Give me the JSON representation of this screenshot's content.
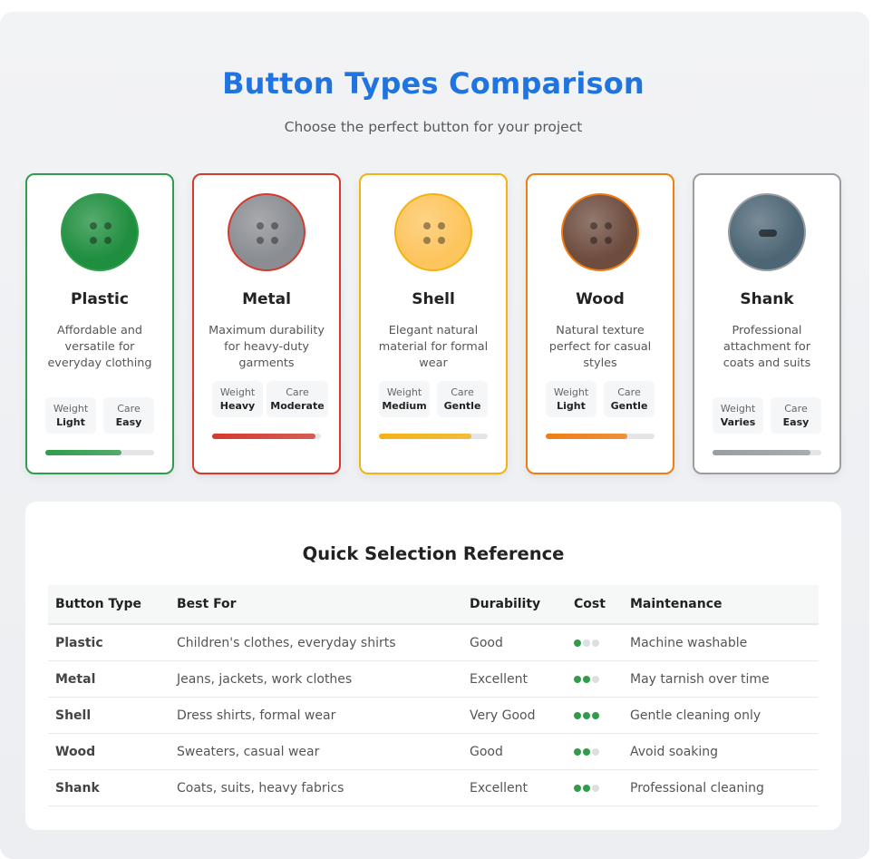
{
  "header": {
    "title": "Button Types Comparison",
    "subtitle": "Choose the perfect button for your project"
  },
  "cards": [
    {
      "name": "Plastic",
      "description": "Affordable and versatile for everyday clothing",
      "weight_label": "Weight",
      "weight": "Light",
      "care_label": "Care",
      "care": "Easy",
      "rating_fill": 0.7,
      "style": "four-hole",
      "accent": "#2f9d4b",
      "button_color": "#1f8e3e"
    },
    {
      "name": "Metal",
      "description": "Maximum durability for heavy-duty garments",
      "weight_label": "Weight",
      "weight": "Heavy",
      "care_label": "Care",
      "care": "Moderate",
      "rating_fill": 0.95,
      "style": "four-hole",
      "accent": "#d43a2e",
      "button_color": "#8a8d92"
    },
    {
      "name": "Shell",
      "description": "Elegant natural material for formal wear",
      "weight_label": "Weight",
      "weight": "Medium",
      "care_label": "Care",
      "care": "Gentle",
      "rating_fill": 0.85,
      "style": "four-hole",
      "accent": "#f2b313",
      "button_color": "#fdc55e"
    },
    {
      "name": "Wood",
      "description": "Natural texture perfect for casual styles",
      "weight_label": "Weight",
      "weight": "Light",
      "care_label": "Care",
      "care": "Gentle",
      "rating_fill": 0.75,
      "style": "four-hole",
      "accent": "#f07d13",
      "button_color": "#6e4c3e"
    },
    {
      "name": "Shank",
      "description": "Professional attachment for coats and suits",
      "weight_label": "Weight",
      "weight": "Varies",
      "care_label": "Care",
      "care": "Easy",
      "rating_fill": 0.9,
      "style": "shank",
      "accent": "#9a9da2",
      "button_color": "#4d6675"
    }
  ],
  "reference": {
    "title": "Quick Selection Reference",
    "columns": [
      "Button Type",
      "Best For",
      "Durability",
      "Cost",
      "Maintenance"
    ],
    "rows": [
      {
        "type": "Plastic",
        "best_for": "Children's clothes, everyday shirts",
        "durability": "Good",
        "cost": 1,
        "maintenance": "Machine washable"
      },
      {
        "type": "Metal",
        "best_for": "Jeans, jackets, work clothes",
        "durability": "Excellent",
        "cost": 2,
        "maintenance": "May tarnish over time"
      },
      {
        "type": "Shell",
        "best_for": "Dress shirts, formal wear",
        "durability": "Very Good",
        "cost": 3,
        "maintenance": "Gentle cleaning only"
      },
      {
        "type": "Wood",
        "best_for": "Sweaters, casual wear",
        "durability": "Good",
        "cost": 2,
        "maintenance": "Avoid soaking"
      },
      {
        "type": "Shank",
        "best_for": "Coats, suits, heavy fabrics",
        "durability": "Excellent",
        "cost": 2,
        "maintenance": "Professional cleaning"
      }
    ],
    "cost_max": 3
  }
}
